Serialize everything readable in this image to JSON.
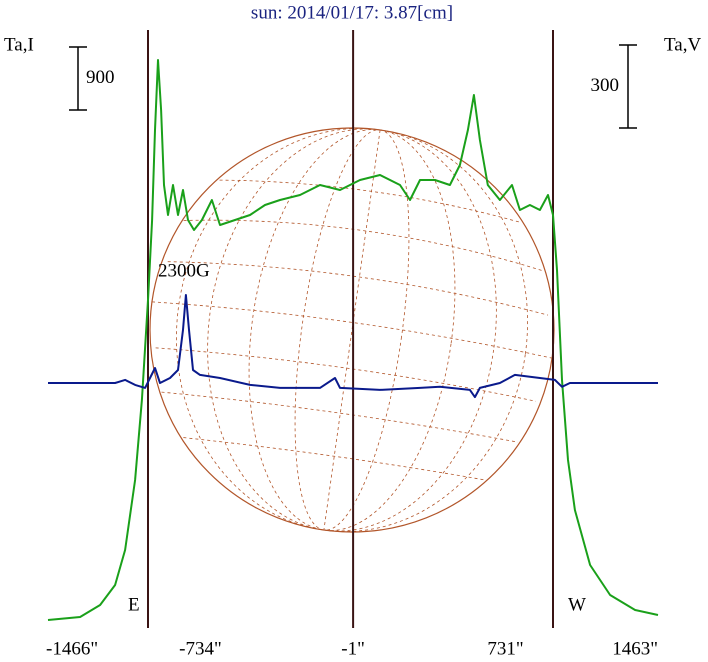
{
  "chart_data": {
    "type": "line",
    "title": "sun: 2014/01/17: 3.87[cm]",
    "y_label": "Ta,I",
    "y2_label": "Ta,V",
    "y_scale_bar": 900,
    "y2_scale_bar": 300,
    "annotations": [
      "2300G",
      "E",
      "W"
    ],
    "xlim": [
      -1466,
      1463
    ],
    "xticks": [
      {
        "value": -1466,
        "label": "-1466\""
      },
      {
        "value": -734,
        "label": "-734\""
      },
      {
        "value": -1,
        "label": "-1\""
      },
      {
        "value": 731,
        "label": "731\""
      },
      {
        "value": 1463,
        "label": "1463\""
      }
    ],
    "ylim": [
      0,
      8500
    ],
    "y2lim": [
      -875,
      1276
    ],
    "series": [
      {
        "name": "Ta,I",
        "color": "#1aa01a",
        "x": [
          -1466,
          -1312,
          -1216,
          -1144,
          -1096,
          -1048,
          -1015,
          -986,
          -966,
          -952,
          -938,
          -923,
          -909,
          -890,
          -866,
          -842,
          -818,
          -794,
          -765,
          -727,
          -679,
          -640,
          -568,
          -496,
          -424,
          -352,
          -256,
          -160,
          -64,
          32,
          128,
          224,
          272,
          320,
          392,
          464,
          512,
          550,
          579,
          608,
          646,
          704,
          762,
          800,
          848,
          896,
          935,
          959,
          978,
          1002,
          1031,
          1064,
          1137,
          1233,
          1353,
          1463
        ],
        "values": [
          71,
          114,
          286,
          571,
          1071,
          2071,
          3214,
          4643,
          5786,
          7071,
          8071,
          7357,
          6286,
          5857,
          6286,
          5857,
          6214,
          5786,
          5643,
          5786,
          6071,
          5714,
          5786,
          5857,
          6000,
          6071,
          6143,
          6286,
          6214,
          6357,
          6429,
          6286,
          6071,
          6357,
          6357,
          6286,
          6571,
          7071,
          7571,
          6929,
          6286,
          6071,
          6286,
          5929,
          6000,
          5929,
          6143,
          5857,
          5071,
          3500,
          2357,
          1643,
          857,
          429,
          214,
          143
        ]
      },
      {
        "name": "Ta,V",
        "color": "#0a1a8c",
        "axis": "y2",
        "x": [
          -1466,
          -1144,
          -1096,
          -1048,
          -1000,
          -976,
          -952,
          -928,
          -880,
          -842,
          -818,
          -804,
          -789,
          -770,
          -736,
          -640,
          -496,
          -352,
          -160,
          -88,
          -64,
          128,
          320,
          416,
          560,
          584,
          608,
          704,
          776,
          896,
          968,
          1002,
          1040,
          1463
        ],
        "values": [
          0,
          0,
          11,
          -7,
          -18,
          18,
          54,
          0,
          18,
          47,
          192,
          318,
          192,
          47,
          29,
          18,
          -7,
          -18,
          -18,
          18,
          -18,
          -25,
          -18,
          -14,
          -25,
          -51,
          -18,
          0,
          29,
          18,
          11,
          -14,
          0,
          0
        ]
      }
    ]
  }
}
